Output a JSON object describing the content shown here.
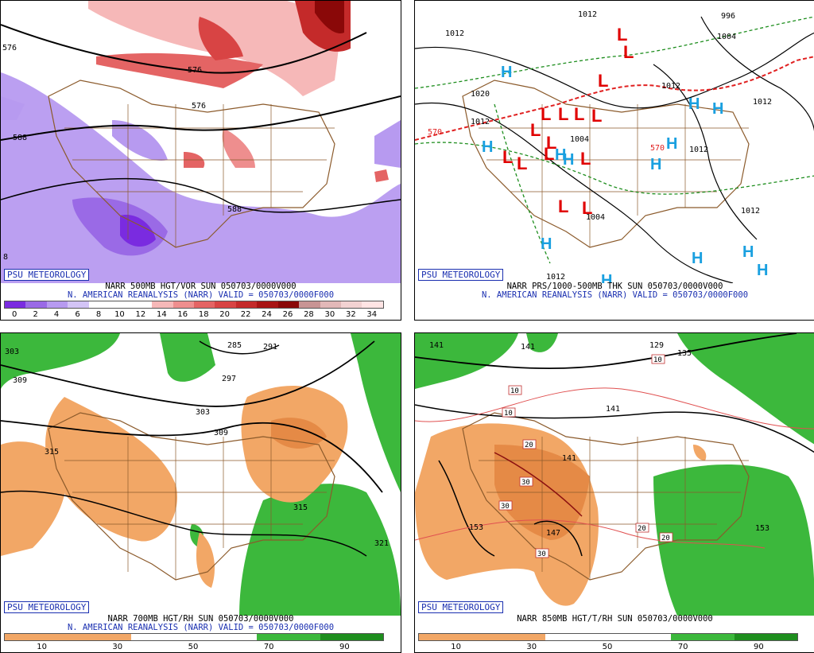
{
  "logo": "PSU METEOROLOGY",
  "panels": {
    "vort": {
      "title": "NARR 500MB HGT/VOR SUN 050703/0000V000",
      "valid": "N. AMERICAN REANALYSIS (NARR) VALID = 050703/0000F000",
      "scale": [
        "0",
        "2",
        "4",
        "6",
        "8",
        "10",
        "12",
        "14",
        "16",
        "18",
        "20",
        "22",
        "24",
        "26",
        "28",
        "30",
        "32",
        "34"
      ],
      "contours": [
        "576",
        "588",
        "576",
        "588",
        "8",
        "576"
      ]
    },
    "sfc": {
      "title": "NARR PRS/1000-500MB THK SUN 050703/0000V000",
      "valid": "N. AMERICAN REANALYSIS (NARR) VALID = 050703/0000F000",
      "isobars": [
        "1012",
        "1004",
        "1020",
        "1012",
        "1012",
        "1012",
        "1004",
        "1012",
        "1004",
        "1012",
        "1012",
        "1012",
        "996"
      ],
      "thickness": [
        "570",
        "570"
      ],
      "lows": [
        "L",
        "L",
        "L",
        "L",
        "L",
        "L",
        "L",
        "L",
        "L",
        "L",
        "L",
        "L",
        "L",
        "L",
        "L"
      ],
      "highs": [
        "H",
        "H",
        "H",
        "H",
        "H",
        "H",
        "H",
        "H",
        "H",
        "H",
        "H",
        "H",
        "H"
      ]
    },
    "h700": {
      "title": "NARR 700MB HGT/RH SUN 050703/0000V000",
      "valid": "N. AMERICAN REANALYSIS (NARR) VALID = 050703/0000F000",
      "scale": [
        "10",
        "30",
        "50",
        "70",
        "90"
      ],
      "contours": [
        "303",
        "309",
        "285",
        "291",
        "297",
        "303",
        "309",
        "315",
        "315",
        "321"
      ]
    },
    "h850": {
      "title": "NARR 850MB HGT/T/RH SUN 050703/0000V000",
      "scale": [
        "10",
        "30",
        "50",
        "70",
        "90"
      ],
      "heights": [
        "141",
        "141",
        "129",
        "135",
        "141",
        "141",
        "153",
        "147",
        "153"
      ],
      "temps": [
        "10",
        "10",
        "10",
        "20",
        "30",
        "30",
        "30",
        "20",
        "20"
      ]
    }
  },
  "colors": {
    "vort_scale": [
      "#7a2be0",
      "#9a6ae6",
      "#b79af0",
      "#d3c4f6",
      "#ffffff",
      "#ffffff",
      "#ffffff",
      "#f6b8b8",
      "#ee8e8e",
      "#e46464",
      "#d84444",
      "#c42a2a",
      "#a81414",
      "#8a0808",
      "#c89494",
      "#e2b8b8",
      "#f2d2d2",
      "#ffe4e4"
    ],
    "rh_scale": [
      "#f2a766",
      "#f2a766",
      "#ffffff",
      "#ffffff",
      "#3cb83c",
      "#1e8e1e"
    ]
  }
}
